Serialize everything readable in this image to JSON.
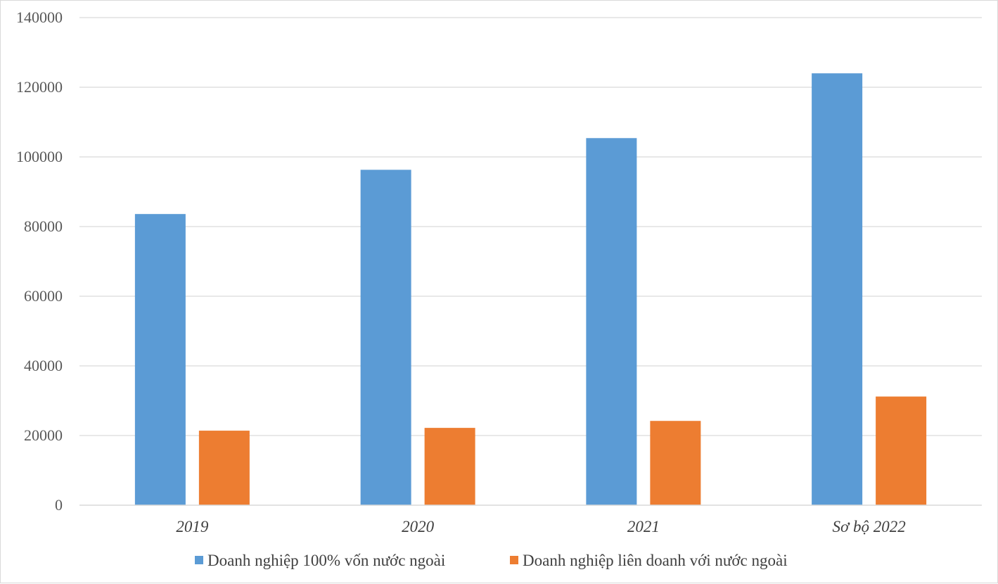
{
  "chart_data": {
    "type": "bar",
    "categories": [
      "2019",
      "2020",
      "2021",
      "Sơ bộ 2022"
    ],
    "series": [
      {
        "name": "Doanh nghiệp 100% vốn nước ngoài",
        "color": "#5b9bd5",
        "values": [
          83600,
          96300,
          105400,
          124000
        ]
      },
      {
        "name": "Doanh nghiệp liên doanh với nước ngoài",
        "color": "#ed7d31",
        "values": [
          21400,
          22200,
          24200,
          31200
        ]
      }
    ],
    "ylim": [
      0,
      140000
    ],
    "yticks": [
      "0",
      "20000",
      "40000",
      "60000",
      "80000",
      "100000",
      "120000",
      "140000"
    ],
    "grid": true,
    "legend": "bottom"
  }
}
